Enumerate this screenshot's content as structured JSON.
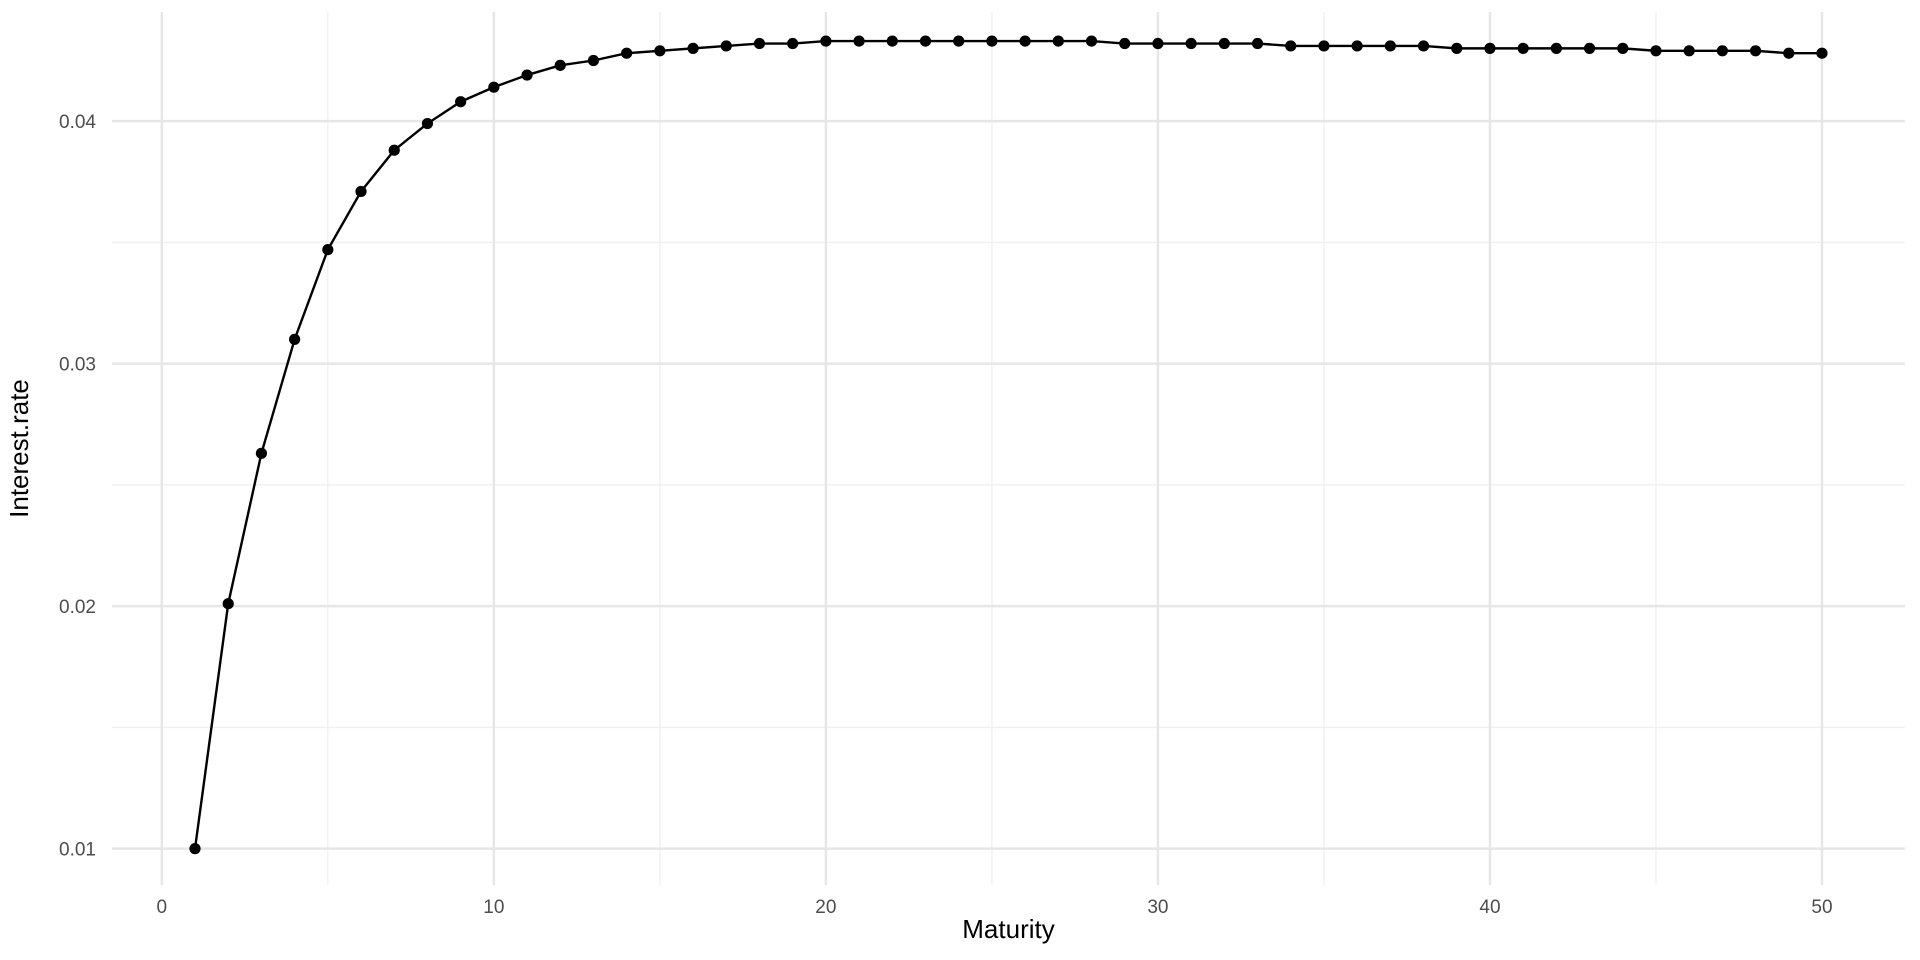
{
  "chart_data": {
    "type": "line",
    "title": "",
    "xlabel": "Maturity",
    "ylabel": "Interest.rate",
    "xlim": [
      -1.5,
      52.5
    ],
    "ylim": [
      0.0085,
      0.0445
    ],
    "x_ticks": [
      0,
      10,
      20,
      30,
      40,
      50
    ],
    "x_tick_labels": [
      "0",
      "10",
      "20",
      "30",
      "40",
      "50"
    ],
    "x_minor_ticks": [
      5,
      15,
      25,
      35,
      45
    ],
    "y_ticks": [
      0.01,
      0.02,
      0.03,
      0.04
    ],
    "y_tick_labels": [
      "0.01",
      "0.02",
      "0.03",
      "0.04"
    ],
    "y_minor_ticks": [
      0.015,
      0.025,
      0.035
    ],
    "grid": true,
    "legend": "none",
    "colors": {
      "line": "#000000",
      "points": "#000000",
      "grid": "#e6e6e6"
    },
    "series": [
      {
        "x": [
          1,
          2,
          3,
          4,
          5,
          6,
          7,
          8,
          9,
          10,
          11,
          12,
          13,
          14,
          15,
          16,
          17,
          18,
          19,
          20,
          21,
          22,
          23,
          24,
          25,
          26,
          27,
          28,
          29,
          30,
          31,
          32,
          33,
          34,
          35,
          36,
          37,
          38,
          39,
          40,
          41,
          42,
          43,
          44,
          45,
          46,
          47,
          48,
          49,
          50
        ],
        "y": [
          0.01,
          0.0201,
          0.0263,
          0.031,
          0.0347,
          0.0371,
          0.0388,
          0.0399,
          0.0408,
          0.0414,
          0.0419,
          0.0423,
          0.0425,
          0.0428,
          0.0429,
          0.043,
          0.0431,
          0.0432,
          0.0432,
          0.0433,
          0.0433,
          0.0433,
          0.0433,
          0.0433,
          0.0433,
          0.0433,
          0.0433,
          0.0433,
          0.0432,
          0.0432,
          0.0432,
          0.0432,
          0.0432,
          0.0431,
          0.0431,
          0.0431,
          0.0431,
          0.0431,
          0.043,
          0.043,
          0.043,
          0.043,
          0.043,
          0.043,
          0.0429,
          0.0429,
          0.0429,
          0.0429,
          0.0428,
          0.0428
        ]
      }
    ]
  }
}
